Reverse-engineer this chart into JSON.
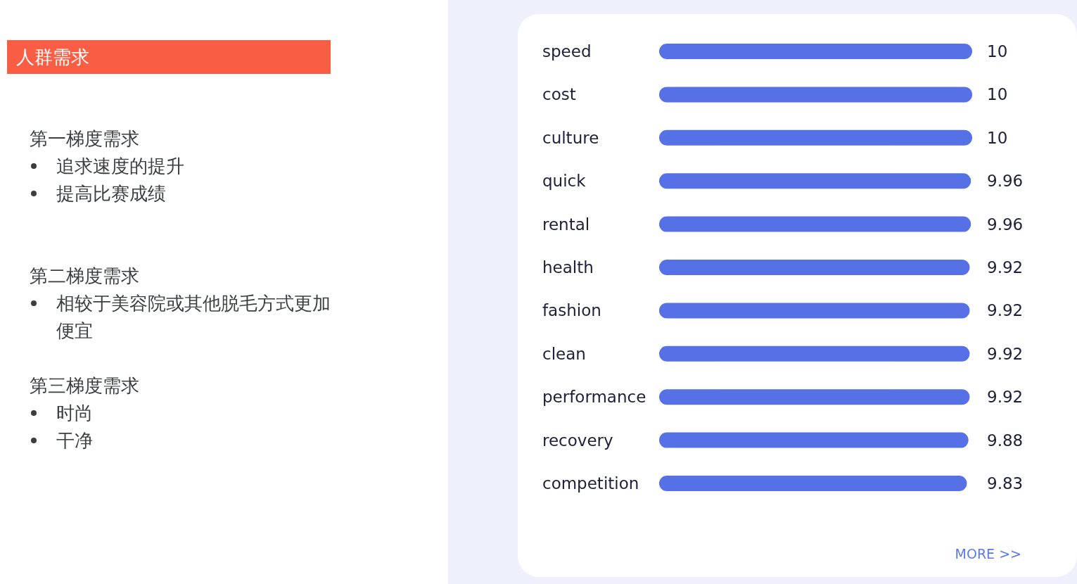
{
  "chart_data": [
    {
      "type": "other",
      "title": "人群需求"
    },
    {
      "type": "other",
      "title": "第一梯度需求",
      "annotations": [
        "追求速度的提升",
        "提高比赛成绩"
      ]
    },
    {
      "type": "other",
      "title": "第二梯度需求",
      "annotations": [
        "相较于美容院或其他脱毛方式更加便宜"
      ]
    },
    {
      "type": "other",
      "title": "第三梯度需求",
      "annotations": [
        "时尚",
        "干净"
      ]
    },
    {
      "type": "bar",
      "orientation": "horizontal",
      "categories": [
        "speed",
        "cost",
        "culture",
        "quick",
        "rental",
        "health",
        "fashion",
        "clean",
        "performance",
        "recovery",
        "competition"
      ],
      "values": [
        10,
        10,
        10,
        9.96,
        9.96,
        9.92,
        9.92,
        9.92,
        9.92,
        9.88,
        9.83
      ],
      "color": "#5670e5",
      "data_labels": true,
      "annotations": [
        "MORE >>"
      ]
    }
  ]
}
